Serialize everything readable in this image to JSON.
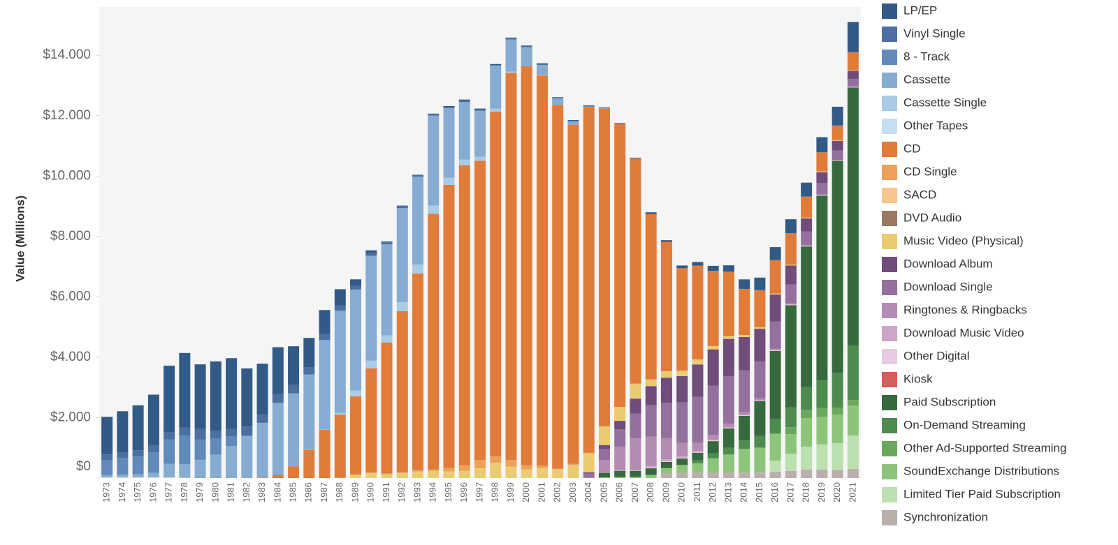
{
  "chart_data": {
    "type": "stacked_bar",
    "y_label": "Value (Millions)",
    "categories": [
      "1973",
      "1974",
      "1975",
      "1976",
      "1977",
      "1978",
      "1979",
      "1980",
      "1981",
      "1982",
      "1983",
      "1984",
      "1985",
      "1986",
      "1987",
      "1988",
      "1989",
      "1990",
      "1991",
      "1992",
      "1993",
      "1994",
      "1995",
      "1996",
      "1997",
      "1998",
      "1999",
      "2000",
      "2001",
      "2002",
      "2003",
      "2004",
      "2005",
      "2006",
      "2007",
      "2008",
      "2009",
      "2010",
      "2011",
      "2012",
      "2013",
      "2014",
      "2015",
      "2016",
      "2017",
      "2018",
      "2019",
      "2020",
      "2021"
    ],
    "ylim": [
      0,
      15600
    ],
    "yticks": [
      {
        "value": 0,
        "label": "$0"
      },
      {
        "value": 2000,
        "label": "$2.000"
      },
      {
        "value": 4000,
        "label": "$4.000"
      },
      {
        "value": 6000,
        "label": "$6.000"
      },
      {
        "value": 8000,
        "label": "$8.000"
      },
      {
        "value": 10000,
        "label": "$10.000"
      },
      {
        "value": 12000,
        "label": "$12.000"
      },
      {
        "value": 14000,
        "label": "$14.000"
      }
    ],
    "series": [
      {
        "name": "LP/EP",
        "color": "#325a87",
        "values": [
          1246,
          1356,
          1485,
          1663,
          2195,
          2473,
          2136,
          2291,
          2342,
          1925,
          1690,
          1548,
          1281,
          983,
          793,
          532,
          221,
          86,
          29,
          14,
          11,
          18,
          25,
          37,
          33,
          34,
          32,
          28,
          27,
          21,
          22,
          19,
          14,
          16,
          22,
          56,
          60,
          89,
          120,
          164,
          211,
          315,
          416,
          431,
          459,
          460,
          497,
          620,
          1000
        ]
      },
      {
        "name": "Vinyl Single",
        "color": "#4b6fa0",
        "values": [
          190,
          194,
          211,
          245,
          245,
          260,
          354,
          269,
          256,
          283,
          269,
          298,
          281,
          228,
          203,
          180,
          116,
          95,
          64,
          66,
          51,
          47,
          47,
          48,
          35,
          26,
          28,
          27,
          31,
          24,
          22,
          20,
          13,
          12,
          4,
          6,
          3,
          3,
          5,
          6,
          6,
          6,
          6,
          5,
          6,
          5,
          6,
          6,
          8
        ]
      },
      {
        "name": "8 - Track",
        "color": "#6189b9",
        "values": [
          489,
          549,
          584,
          678,
          811,
          948,
          669,
          526,
          309,
          36,
          0,
          0,
          0,
          0,
          0,
          0,
          0,
          0,
          0,
          0,
          0,
          0,
          0,
          0,
          0,
          0,
          0,
          0,
          0,
          0,
          0,
          0,
          0,
          0,
          0,
          0,
          0,
          0,
          0,
          0,
          0,
          0,
          0,
          0,
          0,
          0,
          0,
          0,
          0
        ]
      },
      {
        "name": "Cassette",
        "color": "#86acd2",
        "values": [
          76,
          87,
          99,
          145,
          450,
          450,
          604,
          776,
          1062,
          1385,
          1811,
          2384,
          2412,
          2500,
          2960,
          3385,
          3346,
          3472,
          3019,
          3116,
          2916,
          2977,
          2303,
          1905,
          1523,
          1420,
          1062,
          626,
          363,
          209,
          108,
          24,
          13,
          3,
          0,
          0,
          0,
          0,
          0,
          0,
          0,
          0,
          0,
          0,
          0,
          0,
          0,
          0,
          0
        ]
      },
      {
        "name": "Cassette Single",
        "color": "#a8cbe6",
        "values": [
          0,
          0,
          0,
          0,
          0,
          0,
          0,
          0,
          0,
          0,
          0,
          0,
          0,
          0,
          14,
          57,
          194,
          257,
          230,
          298,
          298,
          274,
          236,
          190,
          134,
          94,
          48,
          4,
          0,
          0,
          0,
          0,
          0,
          0,
          0,
          0,
          0,
          0,
          0,
          0,
          0,
          0,
          0,
          0,
          0,
          0,
          0,
          0,
          0
        ]
      },
      {
        "name": "Other Tapes",
        "color": "#c5def1",
        "values": [
          25,
          26,
          28,
          30,
          20,
          10,
          0,
          0,
          0,
          0,
          0,
          0,
          0,
          0,
          0,
          0,
          0,
          0,
          0,
          0,
          0,
          0,
          0,
          0,
          0,
          0,
          0,
          0,
          0,
          0,
          0,
          0,
          0,
          0,
          0,
          0,
          0,
          0,
          0,
          0,
          0,
          0,
          0,
          0,
          0,
          0,
          0,
          0,
          0
        ]
      },
      {
        "name": "CD",
        "color": "#e07b39",
        "values": [
          0,
          0,
          0,
          0,
          0,
          0,
          0,
          0,
          0,
          0,
          17,
          103,
          390,
          930,
          1594,
          2090,
          2588,
          3452,
          4338,
          5327,
          6511,
          8465,
          9377,
          9935,
          9915,
          11416,
          12816,
          13215,
          12909,
          12044,
          11233,
          11447,
          10520,
          9373,
          7452,
          5471,
          4274,
          3390,
          3101,
          2486,
          2124,
          1520,
          1220,
          1100,
          1040,
          690,
          630,
          480,
          584
        ]
      },
      {
        "name": "CD Single",
        "color": "#eda15b",
        "values": [
          0,
          0,
          0,
          0,
          0,
          0,
          0,
          0,
          0,
          0,
          0,
          0,
          0,
          0,
          0,
          9,
          0,
          6,
          35,
          45,
          45,
          56,
          110,
          184,
          272,
          213,
          222,
          142,
          79,
          20,
          36,
          15,
          11,
          7,
          12,
          4,
          3,
          3,
          2,
          1,
          0,
          0,
          0,
          0,
          0,
          0,
          0,
          0,
          0
        ]
      },
      {
        "name": "SACD",
        "color": "#f6c68e",
        "values": [
          0,
          0,
          0,
          0,
          0,
          0,
          0,
          0,
          0,
          0,
          0,
          0,
          0,
          0,
          0,
          0,
          0,
          0,
          0,
          0,
          0,
          0,
          0,
          0,
          0,
          0,
          0,
          0,
          0,
          0,
          26,
          16,
          10,
          4,
          2,
          0,
          0,
          0,
          0,
          0,
          0,
          0,
          0,
          0,
          0,
          0,
          0,
          0,
          0
        ]
      },
      {
        "name": "DVD Audio",
        "color": "#9a7862",
        "values": [
          0,
          0,
          0,
          0,
          0,
          0,
          0,
          0,
          0,
          0,
          0,
          0,
          0,
          0,
          0,
          0,
          0,
          0,
          0,
          0,
          0,
          0,
          0,
          0,
          0,
          0,
          0,
          0,
          0,
          6,
          8,
          6,
          3,
          2,
          1,
          0,
          0,
          0,
          0,
          0,
          0,
          0,
          0,
          0,
          0,
          0,
          0,
          0,
          0
        ]
      },
      {
        "name": "Music Video (Physical)",
        "color": "#ebcb72",
        "values": [
          0,
          0,
          0,
          0,
          0,
          0,
          0,
          0,
          0,
          0,
          0,
          0,
          0,
          0,
          0,
          0,
          115,
          172,
          118,
          157,
          214,
          231,
          220,
          236,
          323,
          508,
          377,
          281,
          329,
          288,
          400,
          607,
          602,
          451,
          484,
          219,
          215,
          176,
          165,
          109,
          95,
          68,
          53,
          34,
          28,
          30,
          27,
          21,
          21
        ]
      },
      {
        "name": "Download Album",
        "color": "#704c7b",
        "values": [
          0,
          0,
          0,
          0,
          0,
          0,
          0,
          0,
          0,
          0,
          0,
          0,
          0,
          0,
          0,
          0,
          0,
          0,
          0,
          0,
          0,
          0,
          0,
          0,
          0,
          0,
          0,
          0,
          0,
          0,
          0,
          46,
          136,
          275,
          498,
          635,
          829,
          872,
          1070,
          1205,
          1233,
          1100,
          1080,
          890,
          630,
          430,
          360,
          320,
          270
        ]
      },
      {
        "name": "Download Single",
        "color": "#93709e",
        "values": [
          0,
          0,
          0,
          0,
          0,
          0,
          0,
          0,
          0,
          0,
          0,
          0,
          0,
          0,
          0,
          0,
          0,
          0,
          0,
          0,
          0,
          0,
          0,
          0,
          0,
          0,
          0,
          0,
          0,
          0,
          0,
          138,
          364,
          580,
          811,
          1033,
          1172,
          1336,
          1523,
          1623,
          1571,
          1387,
          1220,
          900,
          620,
          450,
          380,
          310,
          250
        ]
      },
      {
        "name": "Ringtones & Ringbacks",
        "color": "#b48bb2",
        "values": [
          0,
          0,
          0,
          0,
          0,
          0,
          0,
          0,
          0,
          0,
          0,
          0,
          0,
          0,
          0,
          0,
          0,
          0,
          0,
          0,
          0,
          0,
          0,
          0,
          0,
          0,
          0,
          0,
          0,
          0,
          0,
          0,
          422,
          774,
          1055,
          977,
          702,
          448,
          277,
          167,
          122,
          93,
          66,
          50,
          40,
          30,
          20,
          20,
          20
        ]
      },
      {
        "name": "Download Music Video",
        "color": "#cda5c8",
        "values": [
          0,
          0,
          0,
          0,
          0,
          0,
          0,
          0,
          0,
          0,
          0,
          0,
          0,
          0,
          0,
          0,
          0,
          0,
          0,
          0,
          0,
          0,
          0,
          0,
          0,
          0,
          0,
          0,
          0,
          0,
          0,
          0,
          2,
          26,
          29,
          54,
          62,
          49,
          38,
          22,
          22,
          15,
          11,
          6,
          5,
          4,
          3,
          3,
          2
        ]
      },
      {
        "name": "Other Digital",
        "color": "#e7cae3",
        "values": [
          0,
          0,
          0,
          0,
          0,
          0,
          0,
          0,
          0,
          0,
          0,
          0,
          0,
          0,
          0,
          0,
          0,
          0,
          0,
          0,
          0,
          0,
          0,
          0,
          0,
          0,
          0,
          0,
          0,
          0,
          0,
          0,
          0,
          0,
          0,
          22,
          22,
          22,
          17,
          21,
          13,
          16,
          17,
          22,
          16,
          14,
          13,
          12,
          12
        ]
      },
      {
        "name": "Kiosk",
        "color": "#d75c5c",
        "values": [
          0,
          0,
          0,
          0,
          0,
          0,
          0,
          0,
          0,
          0,
          0,
          0,
          0,
          0,
          0,
          0,
          0,
          0,
          0,
          0,
          0,
          0,
          0,
          0,
          0,
          0,
          0,
          0,
          0,
          0,
          0,
          0,
          0,
          0,
          0,
          2,
          2,
          6,
          2,
          2,
          4,
          2,
          2,
          2,
          2,
          2,
          2,
          1,
          2
        ]
      },
      {
        "name": "Paid Subscription",
        "color": "#366a3e",
        "values": [
          0,
          0,
          0,
          0,
          0,
          0,
          0,
          0,
          0,
          0,
          0,
          0,
          0,
          0,
          0,
          0,
          0,
          0,
          0,
          0,
          0,
          0,
          0,
          0,
          0,
          0,
          0,
          0,
          0,
          0,
          0,
          0,
          149,
          206,
          200,
          221,
          206,
          212,
          247,
          399,
          644,
          799,
          1156,
          2258,
          3380,
          4650,
          6120,
          7020,
          8550
        ]
      },
      {
        "name": "On-Demand Streaming",
        "color": "#4d8b4f",
        "values": [
          0,
          0,
          0,
          0,
          0,
          0,
          0,
          0,
          0,
          0,
          0,
          0,
          0,
          0,
          0,
          0,
          0,
          0,
          0,
          0,
          0,
          0,
          0,
          0,
          0,
          0,
          0,
          0,
          0,
          0,
          0,
          0,
          0,
          0,
          0,
          0,
          0,
          0,
          100,
          170,
          220,
          295,
          385,
          469,
          660,
          760,
          910,
          1150,
          1800
        ]
      },
      {
        "name": "Other Ad-Supported Streaming",
        "color": "#6aa85d",
        "values": [
          0,
          0,
          0,
          0,
          0,
          0,
          0,
          0,
          0,
          0,
          0,
          0,
          0,
          0,
          0,
          0,
          0,
          0,
          0,
          0,
          0,
          0,
          0,
          0,
          0,
          0,
          0,
          0,
          0,
          0,
          0,
          0,
          0,
          0,
          0,
          0,
          0,
          0,
          0,
          0,
          0,
          0,
          0,
          20,
          230,
          270,
          300,
          230,
          180
        ]
      },
      {
        "name": "SoundExchange Distributions",
        "color": "#8cc57a",
        "values": [
          0,
          0,
          0,
          0,
          0,
          0,
          0,
          0,
          0,
          0,
          0,
          0,
          0,
          0,
          0,
          0,
          0,
          0,
          0,
          0,
          0,
          0,
          0,
          0,
          0,
          0,
          0,
          0,
          0,
          0,
          0,
          7,
          20,
          32,
          36,
          100,
          155,
          249,
          292,
          462,
          590,
          773,
          803,
          884,
          652,
          953,
          908,
          947,
          1000
        ]
      },
      {
        "name": "Limited Tier Paid Subscription",
        "color": "#bde0b1",
        "values": [
          0,
          0,
          0,
          0,
          0,
          0,
          0,
          0,
          0,
          0,
          0,
          0,
          0,
          0,
          0,
          0,
          0,
          0,
          0,
          0,
          0,
          0,
          0,
          0,
          0,
          0,
          0,
          0,
          0,
          0,
          0,
          0,
          0,
          0,
          0,
          0,
          0,
          0,
          0,
          0,
          0,
          0,
          0,
          370,
          570,
          750,
          830,
          890,
          1100
        ]
      },
      {
        "name": "Synchronization",
        "color": "#bab0ab",
        "values": [
          0,
          0,
          0,
          0,
          0,
          0,
          0,
          0,
          0,
          0,
          0,
          0,
          0,
          0,
          0,
          0,
          0,
          0,
          0,
          0,
          0,
          0,
          0,
          0,
          0,
          0,
          0,
          0,
          0,
          0,
          0,
          0,
          0,
          0,
          0,
          0,
          172,
          183,
          196,
          190,
          189,
          190,
          203,
          206,
          232,
          285,
          282,
          266,
          303
        ]
      }
    ]
  }
}
